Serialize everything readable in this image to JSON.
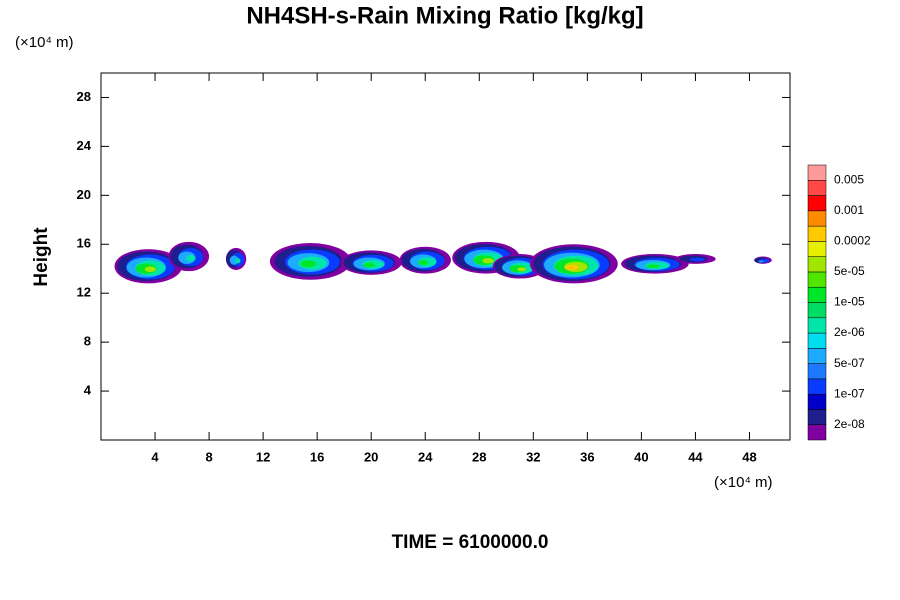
{
  "chart_data": {
    "type": "contour",
    "title": "NH4SH-s-Rain Mixing Ratio [kg/kg]",
    "xunit": "(×10⁴ m)",
    "yunit": "(×10⁴ m)",
    "ylabel": "Height",
    "footer": "TIME = 6100000.0",
    "xlim": [
      0,
      51
    ],
    "ylim": [
      0,
      30
    ],
    "xticks": [
      4,
      8,
      12,
      16,
      20,
      24,
      28,
      32,
      36,
      40,
      44,
      48
    ],
    "yticks": [
      4,
      8,
      12,
      16,
      20,
      24,
      28
    ],
    "colorbar_colors": [
      "#8000a0",
      "#1e1e8c",
      "#0000c8",
      "#0a3cff",
      "#1e78ff",
      "#1eaaff",
      "#00dcf0",
      "#00e6aa",
      "#00dc64",
      "#00e628",
      "#50e600",
      "#a0e600",
      "#e6f000",
      "#ffc800",
      "#ff8c00",
      "#ff0000",
      "#ff4848",
      "#ff9a9a"
    ],
    "colorbar_ticks": [
      {
        "value": 2e-08,
        "label": "2e-08"
      },
      {
        "value": 1e-07,
        "label": "1e-07"
      },
      {
        "value": 5e-07,
        "label": "5e-07"
      },
      {
        "value": 2e-06,
        "label": "2e-06"
      },
      {
        "value": 1e-05,
        "label": "1e-05"
      },
      {
        "value": 5e-05,
        "label": "5e-05"
      },
      0.0002,
      0.001,
      0.005
    ],
    "cells": [
      {
        "x": 3.5,
        "y": 14.2,
        "xspan": 5,
        "yspan": 2.8,
        "peak": 5e-05
      },
      {
        "x": 6.5,
        "y": 15.0,
        "xspan": 3,
        "yspan": 2.4,
        "peak": 2e-06
      },
      {
        "x": 10,
        "y": 14.8,
        "xspan": 1.5,
        "yspan": 1.8,
        "peak": 2e-06
      },
      {
        "x": 15.5,
        "y": 14.6,
        "xspan": 6,
        "yspan": 3,
        "peak": 1e-05
      },
      {
        "x": 20,
        "y": 14.5,
        "xspan": 4.5,
        "yspan": 2,
        "peak": 1e-05
      },
      {
        "x": 24,
        "y": 14.7,
        "xspan": 3.8,
        "yspan": 2.2,
        "peak": 1e-05
      },
      {
        "x": 28.5,
        "y": 14.9,
        "xspan": 5,
        "yspan": 2.6,
        "peak": 5e-05
      },
      {
        "x": 31,
        "y": 14.2,
        "xspan": 4,
        "yspan": 2,
        "peak": 5e-05
      },
      {
        "x": 35,
        "y": 14.4,
        "xspan": 6.5,
        "yspan": 3.2,
        "peak": 0.0002
      },
      {
        "x": 41,
        "y": 14.4,
        "xspan": 5,
        "yspan": 1.6,
        "peak": 1e-05
      },
      {
        "x": 44,
        "y": 14.8,
        "xspan": 3,
        "yspan": 0.8,
        "peak": 1e-07
      },
      {
        "x": 49,
        "y": 14.7,
        "xspan": 1.3,
        "yspan": 0.6,
        "peak": 5e-07
      }
    ]
  }
}
